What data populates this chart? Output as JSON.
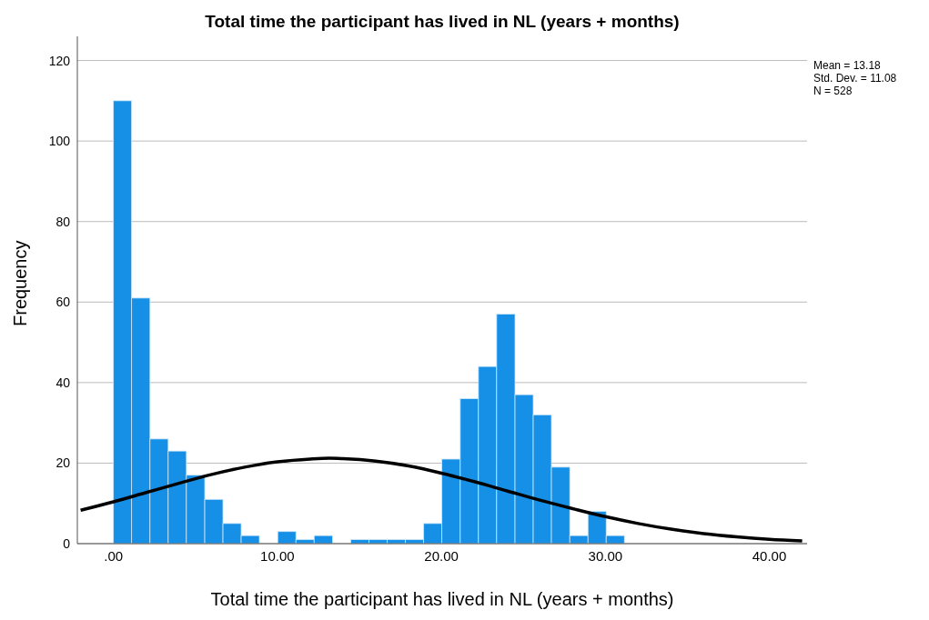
{
  "chart_data": {
    "type": "histogram",
    "title": "Total time the participant has lived in NL (years + months)",
    "xlabel": "Total time the participant has lived in NL (years + months)",
    "ylabel": "Frequency",
    "bins": [
      0,
      1.11,
      2.23,
      3.34,
      4.45,
      5.57,
      6.68,
      7.79,
      8.9,
      10.02,
      11.13,
      12.24,
      13.36,
      14.47,
      15.58,
      16.7,
      17.81,
      18.92,
      20.03,
      21.15,
      22.26,
      23.37,
      24.49,
      25.6,
      26.71,
      27.83,
      28.94,
      30.05,
      31.16
    ],
    "values": [
      110,
      61,
      26,
      23,
      17,
      11,
      5,
      2,
      0,
      3,
      1,
      2,
      0,
      1,
      1,
      1,
      1,
      5,
      21,
      36,
      44,
      57,
      37,
      32,
      19,
      2,
      8,
      2
    ],
    "color": "#1590e6",
    "series": [
      {
        "type": "line",
        "color": "#000000",
        "x": [
          -2,
          0,
          2,
          4,
          6,
          8,
          10,
          12,
          13.18,
          14,
          16,
          18,
          20,
          22,
          24,
          26,
          28,
          30,
          32,
          34,
          36,
          38,
          40,
          42
        ],
        "values": [
          8.3,
          10.4,
          12.7,
          15,
          17.2,
          19,
          20.3,
          21,
          21.2,
          21.1,
          20.5,
          19.3,
          17.5,
          15.4,
          13.1,
          10.8,
          8.7,
          6.7,
          5,
          3.6,
          2.5,
          1.7,
          1.1,
          0.7
        ]
      }
    ],
    "xlim": [
      -2.2,
      42.3
    ],
    "xticks": [
      {
        "value": 0,
        "label": ".00"
      },
      {
        "value": 10,
        "label": "10.00"
      },
      {
        "value": 20,
        "label": "20.00"
      },
      {
        "value": 30,
        "label": "30.00"
      },
      {
        "value": 40,
        "label": "40.00"
      }
    ],
    "ylim": [
      0,
      126
    ],
    "yticks": [
      0,
      20,
      40,
      60,
      80,
      100,
      120
    ],
    "grid": "y",
    "annotations": [
      "Mean = 13.18",
      "Std. Dev. = 11.08",
      "N = 528"
    ]
  }
}
